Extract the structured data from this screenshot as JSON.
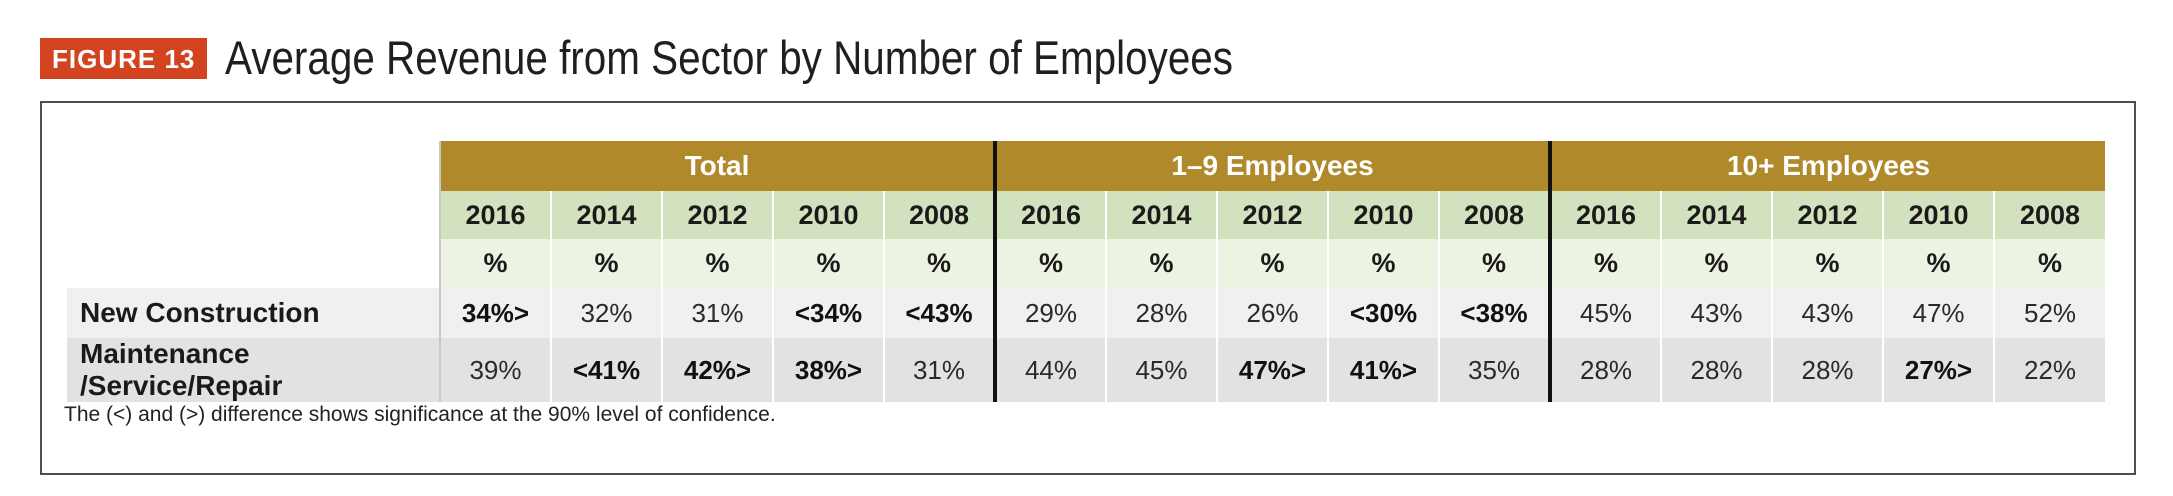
{
  "figure": {
    "badge": "FIGURE 13",
    "title": "Average Revenue from Sector by Number of Employees",
    "accent_color": "#d4431f",
    "header_color": "#b0892a"
  },
  "table": {
    "groups": [
      "Total",
      "1–9 Employees",
      "10+ Employees"
    ],
    "years": [
      "2016",
      "2014",
      "2012",
      "2010",
      "2008"
    ],
    "unit": "%",
    "rows": [
      {
        "label": "New Construction",
        "cells": [
          {
            "v": "34%>",
            "bold": true
          },
          {
            "v": "32%",
            "bold": false
          },
          {
            "v": "31%",
            "bold": false
          },
          {
            "v": "<34%",
            "bold": true
          },
          {
            "v": "<43%",
            "bold": true
          },
          {
            "v": "29%",
            "bold": false
          },
          {
            "v": "28%",
            "bold": false
          },
          {
            "v": "26%",
            "bold": false
          },
          {
            "v": "<30%",
            "bold": true
          },
          {
            "v": "<38%",
            "bold": true
          },
          {
            "v": "45%",
            "bold": false
          },
          {
            "v": "43%",
            "bold": false
          },
          {
            "v": "43%",
            "bold": false
          },
          {
            "v": "47%",
            "bold": false
          },
          {
            "v": "52%",
            "bold": false
          }
        ]
      },
      {
        "label": "Maintenance /Service/Repair",
        "cells": [
          {
            "v": "39%",
            "bold": false
          },
          {
            "v": "<41%",
            "bold": true
          },
          {
            "v": "42%>",
            "bold": true
          },
          {
            "v": "38%>",
            "bold": true
          },
          {
            "v": "31%",
            "bold": false
          },
          {
            "v": "44%",
            "bold": false
          },
          {
            "v": "45%",
            "bold": false
          },
          {
            "v": "47%>",
            "bold": true
          },
          {
            "v": "41%>",
            "bold": true
          },
          {
            "v": "35%",
            "bold": false
          },
          {
            "v": "28%",
            "bold": false
          },
          {
            "v": "28%",
            "bold": false
          },
          {
            "v": "28%",
            "bold": false
          },
          {
            "v": "27%>",
            "bold": true
          },
          {
            "v": "22%",
            "bold": false
          }
        ]
      }
    ]
  },
  "footnote": "The (<) and (>) difference shows significance at the 90% level of confidence."
}
